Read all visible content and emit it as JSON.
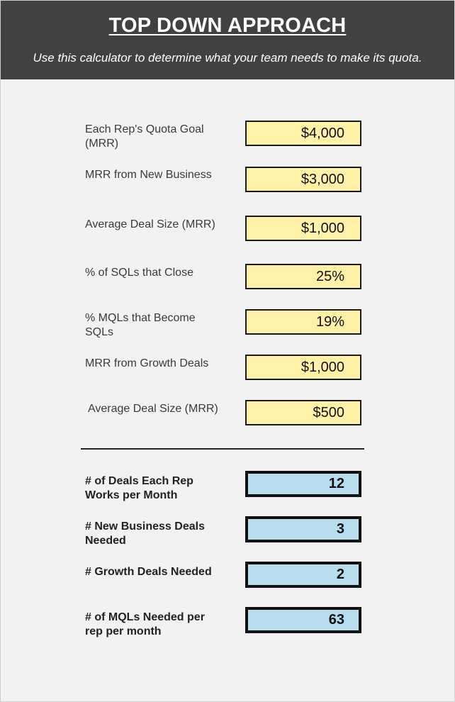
{
  "header": {
    "title": "TOP DOWN APPROACH",
    "subtitle": "Use this calculator to determine what your team needs to make its quota."
  },
  "inputs": [
    {
      "label": "Each Rep's Quota Goal (MRR)",
      "value": "$4,000"
    },
    {
      "label": "MRR from New Business",
      "value": "$3,000"
    },
    {
      "label": "Average Deal Size (MRR)",
      "value": "$1,000"
    },
    {
      "label": "% of SQLs that Close",
      "value": "25%"
    },
    {
      "label": "% MQLs that Become SQLs",
      "value": "19%"
    },
    {
      "label": "MRR from Growth Deals",
      "value": "$1,000"
    },
    {
      "label": "Average Deal Size (MRR)",
      "value": "$500"
    }
  ],
  "outputs": [
    {
      "label": "# of Deals Each Rep Works per Month",
      "value": "12"
    },
    {
      "label": "# New Business Deals Needed",
      "value": "3"
    },
    {
      "label": "# Growth Deals Needed",
      "value": "2"
    },
    {
      "label": "# of MQLs Needed per rep per month",
      "value": "63"
    }
  ],
  "colors": {
    "header_bg": "#414141",
    "input_bg": "#fff1a8",
    "output_bg": "#b8ddef",
    "page_bg": "#f2f2f2"
  }
}
